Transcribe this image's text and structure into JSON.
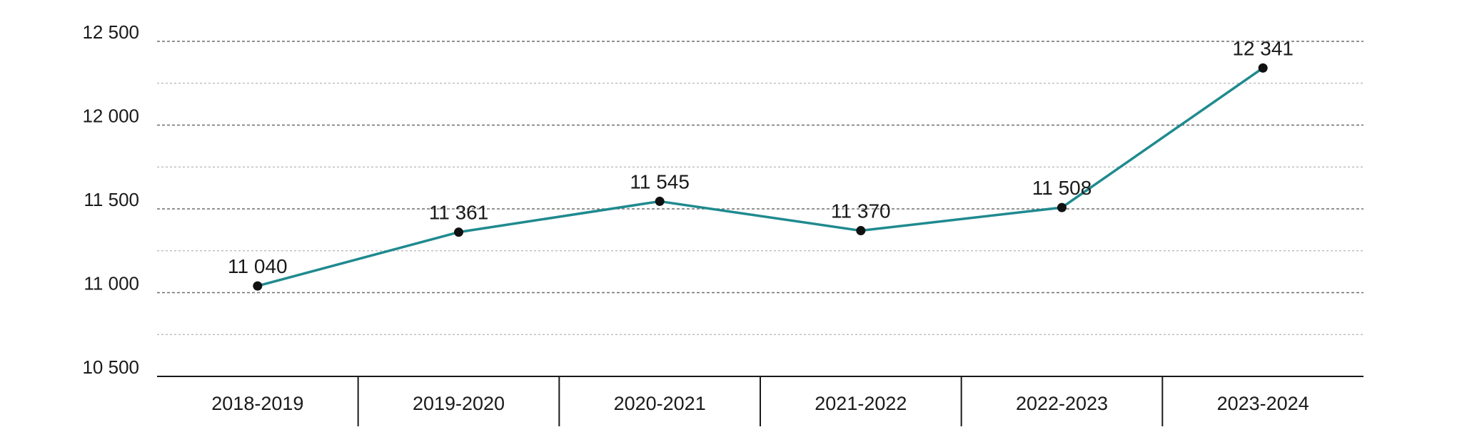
{
  "chart_data": {
    "type": "line",
    "categories": [
      "2018-2019",
      "2019-2020",
      "2020-2021",
      "2021-2022",
      "2022-2023",
      "2023-2024"
    ],
    "series": [
      {
        "values": [
          11040,
          11361,
          11545,
          11370,
          11508,
          12341
        ],
        "labels": [
          "11 040",
          "11 361",
          "11 545",
          "11 370",
          "11 508",
          "12 341"
        ]
      }
    ],
    "ylim": [
      10500,
      12500
    ],
    "yticks": [
      10500,
      11000,
      11500,
      12000,
      12500
    ],
    "ytick_labels": [
      "10 500",
      "11 000",
      "11 500",
      "12 000",
      "12 500"
    ],
    "minor_gridlines": [
      10750,
      11250,
      11750,
      12250
    ],
    "grid": true,
    "colors": {
      "line": "#1f8a8f",
      "marker": "#111111"
    }
  }
}
